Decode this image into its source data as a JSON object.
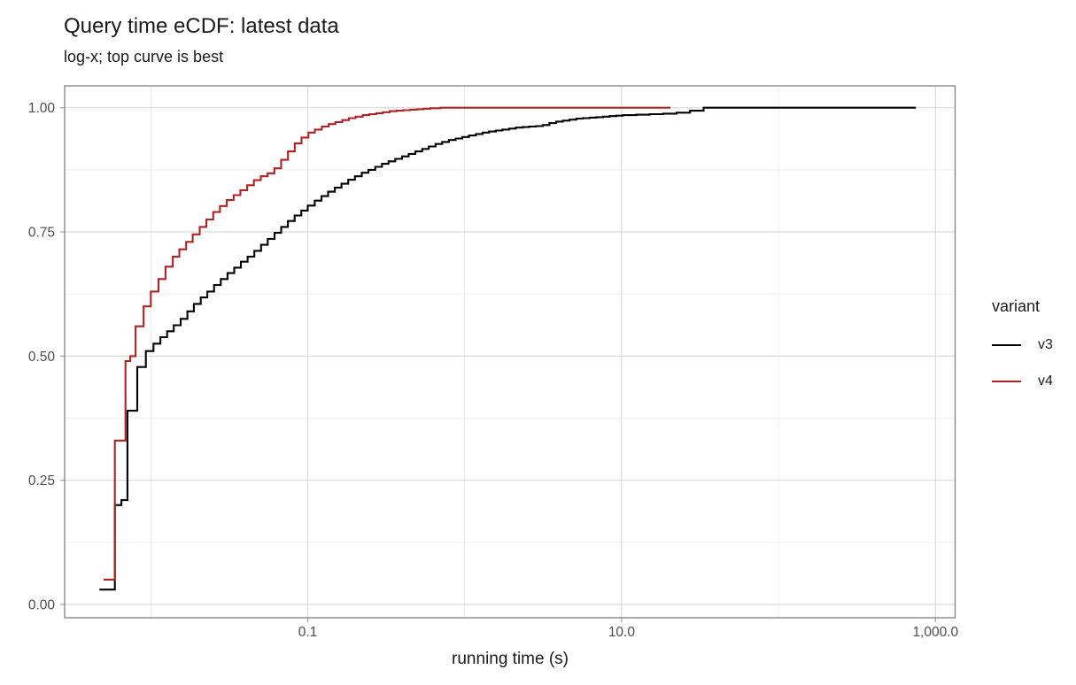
{
  "page": {
    "background": "#ffffff"
  },
  "chart_data": {
    "type": "line",
    "line_style": "step-ecdf",
    "title": "Query time eCDF: latest data",
    "subtitle": "log-x; top curve is best",
    "xlabel": "running time (s)",
    "ylabel": "",
    "x_scale": "log10",
    "grid": "on",
    "x_axis": {
      "tick_labels": [
        "0.1",
        "10.0",
        "1,000.0"
      ],
      "major_ticks": [
        0.1,
        10,
        1000
      ],
      "minor_gridlines": [
        0.01,
        1,
        100
      ],
      "domain": [
        0.0028,
        1330
      ]
    },
    "y_axis": {
      "tick_labels": [
        "0.00",
        "0.25",
        "0.50",
        "0.75",
        "1.00"
      ],
      "major_ticks": [
        0,
        0.25,
        0.5,
        0.75,
        1
      ],
      "minor_gridlines": [
        0.125,
        0.375,
        0.625,
        0.875
      ],
      "domain": [
        -0.02,
        1.04
      ]
    },
    "legend": {
      "title": "variant",
      "position": "right",
      "entries": [
        {
          "label": "v3",
          "color": "#000000"
        },
        {
          "label": "v4",
          "color": "#B22222"
        }
      ]
    },
    "series": [
      {
        "name": "v3",
        "color": "#000000",
        "points": [
          [
            0.0047,
            0.03
          ],
          [
            0.0059,
            0.2
          ],
          [
            0.0065,
            0.21
          ],
          [
            0.0071,
            0.39
          ],
          [
            0.0082,
            0.478
          ],
          [
            0.0093,
            0.51
          ],
          [
            0.0104,
            0.525
          ],
          [
            0.0115,
            0.538
          ],
          [
            0.0127,
            0.55
          ],
          [
            0.014,
            0.562
          ],
          [
            0.0155,
            0.575
          ],
          [
            0.0171,
            0.59
          ],
          [
            0.0188,
            0.605
          ],
          [
            0.0208,
            0.618
          ],
          [
            0.0229,
            0.63
          ],
          [
            0.0253,
            0.643
          ],
          [
            0.0279,
            0.655
          ],
          [
            0.0308,
            0.667
          ],
          [
            0.034,
            0.678
          ],
          [
            0.0375,
            0.69
          ],
          [
            0.0414,
            0.7
          ],
          [
            0.0457,
            0.712
          ],
          [
            0.0504,
            0.724
          ],
          [
            0.0556,
            0.736
          ],
          [
            0.0614,
            0.748
          ],
          [
            0.0677,
            0.76
          ],
          [
            0.0747,
            0.772
          ],
          [
            0.0825,
            0.783
          ],
          [
            0.091,
            0.793
          ],
          [
            0.1,
            0.803
          ],
          [
            0.1108,
            0.813
          ],
          [
            0.1223,
            0.822
          ],
          [
            0.1349,
            0.831
          ],
          [
            0.1489,
            0.839
          ],
          [
            0.164,
            0.847
          ],
          [
            0.181,
            0.855
          ],
          [
            0.2,
            0.862
          ],
          [
            0.221,
            0.869
          ],
          [
            0.244,
            0.875
          ],
          [
            0.269,
            0.881
          ],
          [
            0.297,
            0.887
          ],
          [
            0.327,
            0.892
          ],
          [
            0.361,
            0.897
          ],
          [
            0.399,
            0.902
          ],
          [
            0.44,
            0.907
          ],
          [
            0.485,
            0.912
          ],
          [
            0.536,
            0.917
          ],
          [
            0.591,
            0.922
          ],
          [
            0.652,
            0.927
          ],
          [
            0.719,
            0.931
          ],
          [
            0.794,
            0.935
          ],
          [
            0.876,
            0.938
          ],
          [
            0.966,
            0.941
          ],
          [
            1.066,
            0.944
          ],
          [
            1.18,
            0.947
          ],
          [
            1.3,
            0.95
          ],
          [
            1.43,
            0.952
          ],
          [
            1.58,
            0.954
          ],
          [
            1.74,
            0.956
          ],
          [
            1.92,
            0.958
          ],
          [
            2.12,
            0.96
          ],
          [
            2.34,
            0.961
          ],
          [
            2.58,
            0.962
          ],
          [
            2.85,
            0.963
          ],
          [
            3.14,
            0.965
          ],
          [
            3.47,
            0.969
          ],
          [
            3.83,
            0.972
          ],
          [
            4.22,
            0.974
          ],
          [
            4.66,
            0.976
          ],
          [
            5.14,
            0.978
          ],
          [
            5.67,
            0.979
          ],
          [
            6.25,
            0.98
          ],
          [
            6.9,
            0.981
          ],
          [
            7.61,
            0.982
          ],
          [
            8.39,
            0.983
          ],
          [
            9.26,
            0.984
          ],
          [
            10.2,
            0.985
          ],
          [
            12.4,
            0.986
          ],
          [
            15.1,
            0.987
          ],
          [
            18.4,
            0.988
          ],
          [
            22.4,
            0.99
          ],
          [
            27.3,
            0.994
          ],
          [
            33.3,
            1.0
          ],
          [
            750,
            1.0
          ]
        ]
      },
      {
        "name": "v4",
        "color": "#B22222",
        "points": [
          [
            0.005,
            0.05
          ],
          [
            0.0059,
            0.33
          ],
          [
            0.0069,
            0.49
          ],
          [
            0.0074,
            0.5
          ],
          [
            0.008,
            0.56
          ],
          [
            0.009,
            0.6
          ],
          [
            0.01,
            0.63
          ],
          [
            0.0112,
            0.655
          ],
          [
            0.0124,
            0.68
          ],
          [
            0.0138,
            0.7
          ],
          [
            0.0152,
            0.715
          ],
          [
            0.0168,
            0.73
          ],
          [
            0.0185,
            0.745
          ],
          [
            0.0205,
            0.76
          ],
          [
            0.0226,
            0.775
          ],
          [
            0.025,
            0.79
          ],
          [
            0.0276,
            0.802
          ],
          [
            0.0305,
            0.814
          ],
          [
            0.0337,
            0.824
          ],
          [
            0.0372,
            0.834
          ],
          [
            0.0411,
            0.844
          ],
          [
            0.0454,
            0.854
          ],
          [
            0.0502,
            0.862
          ],
          [
            0.0555,
            0.868
          ],
          [
            0.0613,
            0.878
          ],
          [
            0.0677,
            0.895
          ],
          [
            0.0748,
            0.912
          ],
          [
            0.0826,
            0.928
          ],
          [
            0.0913,
            0.94
          ],
          [
            0.101,
            0.95
          ],
          [
            0.111,
            0.956
          ],
          [
            0.123,
            0.962
          ],
          [
            0.136,
            0.967
          ],
          [
            0.15,
            0.971
          ],
          [
            0.166,
            0.975
          ],
          [
            0.183,
            0.979
          ],
          [
            0.202,
            0.982
          ],
          [
            0.224,
            0.985
          ],
          [
            0.247,
            0.987
          ],
          [
            0.273,
            0.989
          ],
          [
            0.301,
            0.991
          ],
          [
            0.333,
            0.993
          ],
          [
            0.368,
            0.994
          ],
          [
            0.406,
            0.995
          ],
          [
            0.449,
            0.996
          ],
          [
            0.496,
            0.997
          ],
          [
            0.548,
            0.998
          ],
          [
            0.605,
            0.999
          ],
          [
            0.7,
            1.0
          ],
          [
            20.5,
            1.0
          ]
        ]
      }
    ]
  },
  "colors": {
    "panel_border": "#7f7f7f",
    "grid_major": "#dbdbdb",
    "grid_minor": "#e9e9e9",
    "tick_mark": "#a8a8a8",
    "tick_label": "#4d4d4d",
    "text": "#1a1a1a"
  }
}
